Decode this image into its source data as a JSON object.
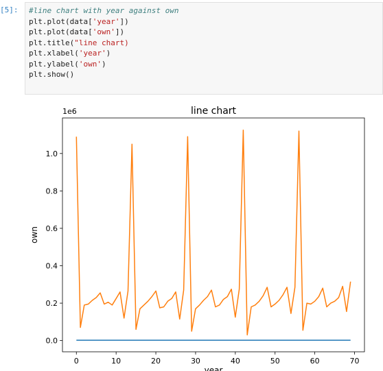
{
  "notebook": {
    "prompt": "[5]:",
    "code_lines": [
      {
        "comment": "#line chart with year against own"
      },
      {
        "code": "plt.plot(data['year'])",
        "parts": [
          {
            "t": "plt",
            "c": "var"
          },
          {
            "t": ".plot(data[",
            "c": "var"
          },
          {
            "t": "'year'",
            "c": "string"
          },
          {
            "t": "])",
            "c": "var"
          }
        ]
      },
      {
        "code": "plt.plot(data['own'])",
        "parts": [
          {
            "t": "plt",
            "c": "var"
          },
          {
            "t": ".plot(data[",
            "c": "var"
          },
          {
            "t": "'own'",
            "c": "string"
          },
          {
            "t": "])",
            "c": "var"
          }
        ]
      },
      {
        "code": "plt.title(\"line chart)",
        "parts": [
          {
            "t": "plt",
            "c": "var"
          },
          {
            "t": ".title(",
            "c": "var"
          },
          {
            "t": "\"line chart)",
            "c": "string"
          }
        ]
      },
      {
        "code": "plt.xlabel('year')",
        "parts": [
          {
            "t": "plt",
            "c": "var"
          },
          {
            "t": ".xlabel(",
            "c": "var"
          },
          {
            "t": "'year'",
            "c": "string"
          },
          {
            "t": ")",
            "c": "var"
          }
        ]
      },
      {
        "code": "plt.ylabel('own')",
        "parts": [
          {
            "t": "plt",
            "c": "var"
          },
          {
            "t": ".ylabel(",
            "c": "var"
          },
          {
            "t": "'own'",
            "c": "string"
          },
          {
            "t": ")",
            "c": "var"
          }
        ]
      },
      {
        "code": "plt.show()",
        "parts": [
          {
            "t": "plt",
            "c": "var"
          },
          {
            "t": ".show()",
            "c": "var"
          }
        ]
      }
    ]
  },
  "colors": {
    "prompt": "#307fc1",
    "series_year": "#1f77b4",
    "series_own": "#ff7f0e"
  },
  "chart_data": {
    "type": "line",
    "title": "line chart",
    "xlabel": "year",
    "ylabel": "own",
    "y_offset_label": "1e6",
    "xlim": [
      -3.5,
      72.5
    ],
    "ylim": [
      -0.06,
      1.19
    ],
    "x_ticks": [
      0,
      10,
      20,
      30,
      40,
      50,
      60,
      70
    ],
    "y_ticks": [
      0.0,
      0.2,
      0.4,
      0.6,
      0.8,
      1.0
    ],
    "y_tick_labels": [
      "0.0",
      "0.2",
      "0.4",
      "0.6",
      "0.8",
      "1.0"
    ],
    "grid": false,
    "series": [
      {
        "values": [
          0.002,
          0.002,
          0.002,
          0.002,
          0.002,
          0.002,
          0.002,
          0.002,
          0.002,
          0.002,
          0.002,
          0.002,
          0.002,
          0.002,
          0.002,
          0.002,
          0.002,
          0.002,
          0.002,
          0.002,
          0.002,
          0.002,
          0.002,
          0.002,
          0.002,
          0.002,
          0.002,
          0.002,
          0.002,
          0.002,
          0.002,
          0.002,
          0.002,
          0.002,
          0.002,
          0.002,
          0.002,
          0.002,
          0.002,
          0.002,
          0.002,
          0.002,
          0.002,
          0.002,
          0.002,
          0.002,
          0.002,
          0.002,
          0.002,
          0.002,
          0.002,
          0.002,
          0.002,
          0.002,
          0.002,
          0.002,
          0.002,
          0.002,
          0.002,
          0.002,
          0.002,
          0.002,
          0.002,
          0.002,
          0.002,
          0.002,
          0.002,
          0.002,
          0.002,
          0.002
        ]
      },
      {
        "values": [
          1.09,
          0.07,
          0.19,
          0.195,
          0.215,
          0.23,
          0.255,
          0.195,
          0.205,
          0.19,
          0.225,
          0.26,
          0.12,
          0.265,
          1.05,
          0.06,
          0.17,
          0.19,
          0.21,
          0.235,
          0.265,
          0.175,
          0.18,
          0.21,
          0.225,
          0.26,
          0.115,
          0.27,
          1.09,
          0.05,
          0.17,
          0.19,
          0.215,
          0.235,
          0.27,
          0.18,
          0.19,
          0.22,
          0.235,
          0.275,
          0.125,
          0.275,
          1.125,
          0.03,
          0.18,
          0.19,
          0.21,
          0.24,
          0.285,
          0.18,
          0.195,
          0.215,
          0.245,
          0.285,
          0.145,
          0.285,
          1.12,
          0.055,
          0.2,
          0.195,
          0.21,
          0.235,
          0.28,
          0.18,
          0.2,
          0.21,
          0.23,
          0.29,
          0.155,
          0.315
        ]
      }
    ]
  }
}
